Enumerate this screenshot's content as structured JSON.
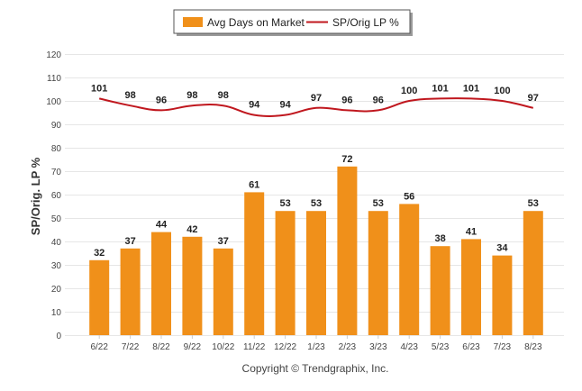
{
  "chart_data": {
    "type": "bar",
    "categories": [
      "6/22",
      "7/22",
      "8/22",
      "9/22",
      "10/22",
      "11/22",
      "12/22",
      "1/23",
      "2/23",
      "3/23",
      "4/23",
      "5/23",
      "6/23",
      "7/23",
      "8/23"
    ],
    "series": [
      {
        "name": "Avg Days on Market",
        "type": "bar",
        "color": "#f0901a",
        "values": [
          32,
          37,
          44,
          42,
          37,
          61,
          53,
          53,
          72,
          53,
          56,
          38,
          41,
          34,
          53
        ]
      },
      {
        "name": "SP/Orig LP %",
        "type": "line",
        "color": "#c0171e",
        "values": [
          101,
          98,
          96,
          98,
          98,
          94,
          94,
          97,
          96,
          96,
          100,
          101,
          101,
          100,
          97
        ]
      }
    ],
    "ylabel": "SP/Orig. LP %",
    "ylim": [
      0,
      120
    ],
    "yticks": [
      0,
      10,
      20,
      30,
      40,
      50,
      60,
      70,
      80,
      90,
      100,
      110,
      120
    ],
    "grid": true,
    "legend_position": "top-center",
    "copyright": "Copyright © Trendgraphix, Inc."
  }
}
